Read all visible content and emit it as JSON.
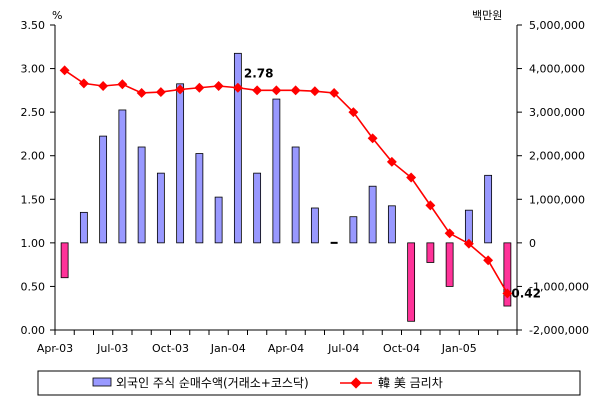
{
  "chart_data": {
    "type": "bar+line",
    "left_axis_unit": "%",
    "right_axis_unit": "백만원",
    "left_ticks": [
      "0.00",
      "0.50",
      "1.00",
      "1.50",
      "2.00",
      "2.50",
      "3.00",
      "3.50"
    ],
    "left_tick_values": [
      0,
      0.5,
      1.0,
      1.5,
      2.0,
      2.5,
      3.0,
      3.5
    ],
    "right_ticks": [
      "-2,000,000",
      "-1,000,000",
      "0",
      "1,000,000",
      "2,000,000",
      "3,000,000",
      "4,000,000",
      "5,000,000"
    ],
    "right_tick_values": [
      -2000000,
      -1000000,
      0,
      1000000,
      2000000,
      3000000,
      4000000,
      5000000
    ],
    "x_tick_labels": [
      "Apr-03",
      "Jul-03",
      "Oct-03",
      "Jan-04",
      "Apr-04",
      "Jul-04",
      "Oct-04",
      "Jan-05"
    ],
    "x_tick_index": [
      0,
      3,
      6,
      9,
      12,
      15,
      18,
      21
    ],
    "months": [
      "Apr-03",
      "May-03",
      "Jun-03",
      "Jul-03",
      "Aug-03",
      "Sep-03",
      "Oct-03",
      "Nov-03",
      "Dec-03",
      "Jan-04",
      "Feb-04",
      "Mar-04",
      "Apr-04",
      "May-04",
      "Jun-04",
      "Jul-04",
      "Aug-04",
      "Sep-04",
      "Oct-04",
      "Nov-04",
      "Dec-04",
      "Jan-05",
      "Feb-05",
      "Mar-05"
    ],
    "ylim_left": [
      0,
      3.5
    ],
    "ylim_right": [
      -2000000,
      5000000
    ],
    "series": [
      {
        "name": "외국인 주식 순매수액(거래소+코스닥)",
        "type": "bar",
        "axis": "right",
        "color": "#9999ff",
        "negative_color": "#ff3399",
        "values": [
          -800000,
          700000,
          2450000,
          3050000,
          2200000,
          1600000,
          3650000,
          2050000,
          1050000,
          4350000,
          1600000,
          3300000,
          2200000,
          800000,
          0,
          600000,
          1300000,
          850000,
          -1800000,
          -450000,
          -1000000,
          750000,
          1550000,
          -1450000
        ]
      },
      {
        "name": "韓 美 금리차",
        "type": "line",
        "axis": "left",
        "color": "#ff0000",
        "values": [
          2.98,
          2.83,
          2.8,
          2.82,
          2.72,
          2.73,
          2.76,
          2.78,
          2.8,
          2.78,
          2.75,
          2.75,
          2.75,
          2.74,
          2.72,
          2.5,
          2.2,
          1.93,
          1.75,
          1.43,
          1.11,
          0.99,
          0.8,
          0.42
        ]
      }
    ],
    "annotations": [
      {
        "text": "2.78",
        "index": 9
      },
      {
        "text": "0.42",
        "index": 23
      }
    ],
    "legend": {
      "position": "bottom",
      "items": [
        "외국인 주식 순매수액(거래소+코스닥)",
        "韓 美 금리차"
      ]
    },
    "grid": false
  }
}
